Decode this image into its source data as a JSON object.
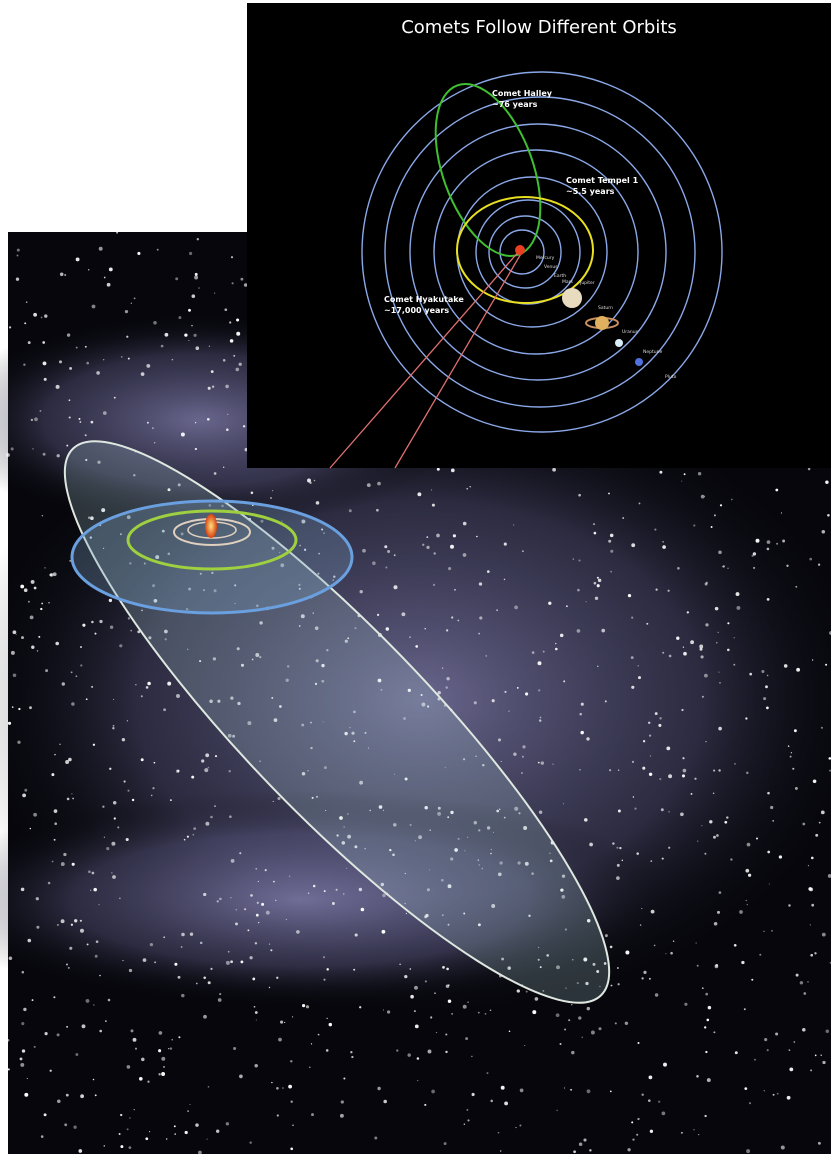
{
  "title": "Comets Follow Different Orbits",
  "comets": [
    {
      "name": "Comet Halley",
      "period": "~76 years"
    },
    {
      "name": "Comet Tempel 1",
      "period": "~5.5 years"
    },
    {
      "name": "Comet Hyakutake",
      "period": "~17,000 years"
    }
  ],
  "planets": [
    "Mercury",
    "Venus",
    "Earth",
    "Mars",
    "Jupiter",
    "Saturn",
    "Uranus",
    "Neptune",
    "Pluto"
  ]
}
